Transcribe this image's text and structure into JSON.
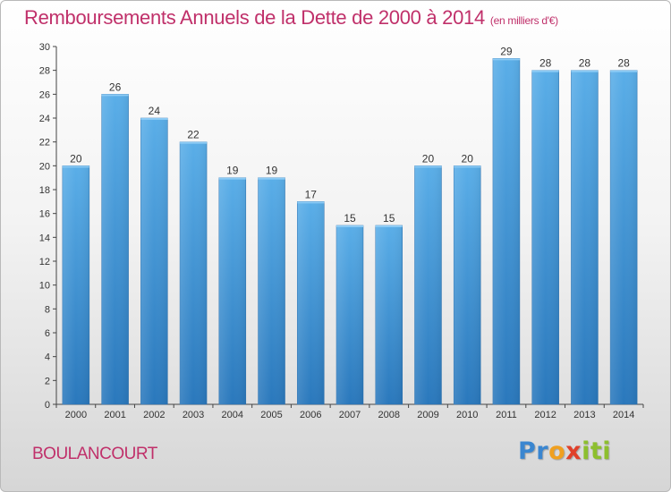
{
  "title": "Remboursements Annuels de la Dette de 2000 à 2014",
  "unit_label": "(en milliers d'€)",
  "commune": "BOULANCOURT",
  "logo_text": "Proxiti",
  "colors": {
    "title": "#c0306a",
    "bar_top": "#5aaee8",
    "bar_bottom": "#2a78bc"
  },
  "chart_data": {
    "type": "bar",
    "title": "Remboursements Annuels de la Dette de 2000 à 2014",
    "xlabel": "",
    "ylabel": "",
    "ylim": [
      0,
      30
    ],
    "ytick_step": 2,
    "grid": false,
    "categories": [
      "2000",
      "2001",
      "2002",
      "2003",
      "2004",
      "2005",
      "2006",
      "2007",
      "2008",
      "2009",
      "2010",
      "2011",
      "2012",
      "2013",
      "2014"
    ],
    "values": [
      20,
      26,
      24,
      22,
      19,
      19,
      17,
      15,
      15,
      20,
      20,
      29,
      28,
      28,
      28
    ]
  }
}
